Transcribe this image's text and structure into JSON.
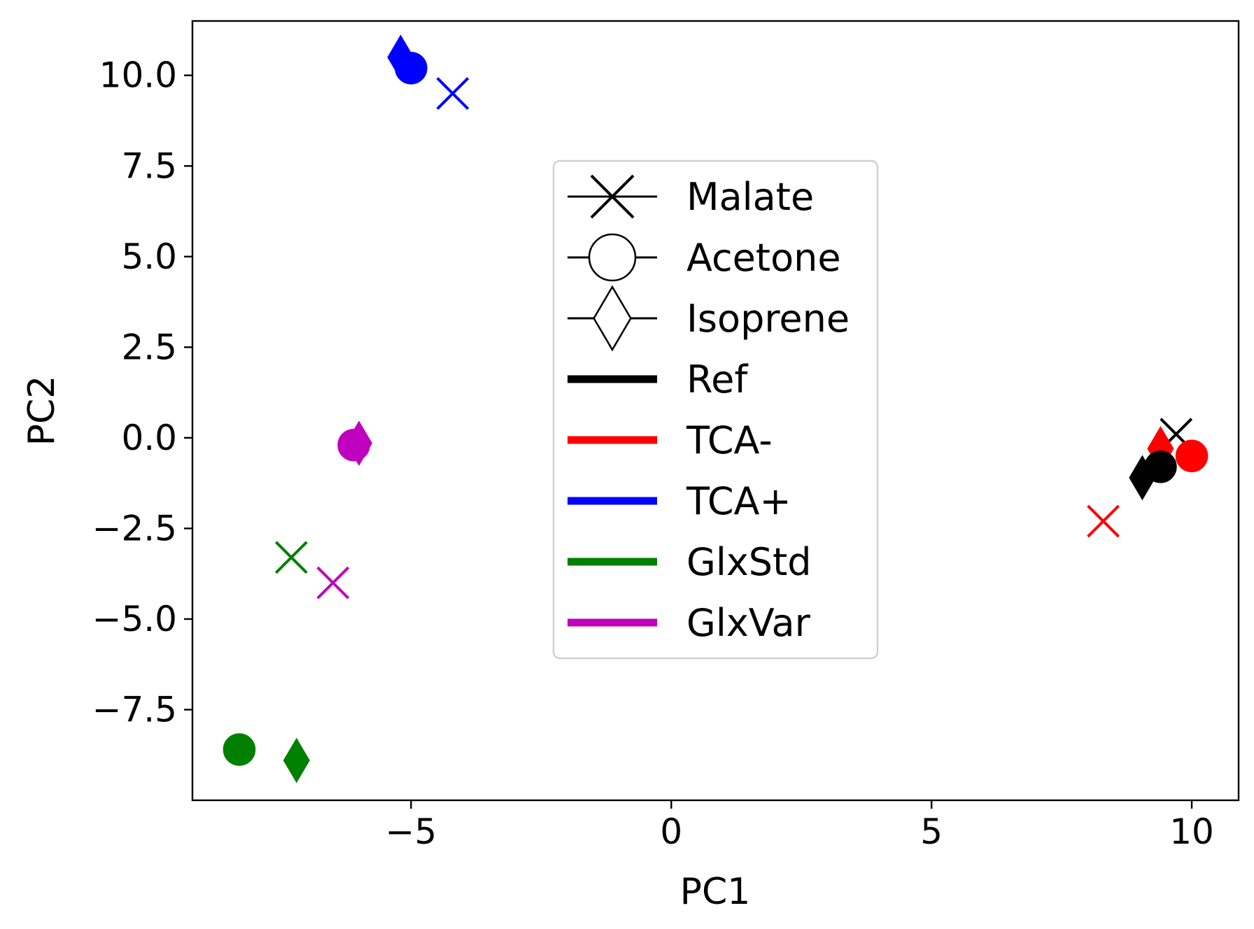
{
  "chart_data": {
    "type": "scatter",
    "title": "",
    "xlabel": "PC1",
    "ylabel": "PC2",
    "xlim": [
      -9.2,
      10.9
    ],
    "ylim": [
      -10.0,
      11.5
    ],
    "x_ticks": [
      {
        "value": -5,
        "label": "−5"
      },
      {
        "value": 0,
        "label": "0"
      },
      {
        "value": 5,
        "label": "5"
      },
      {
        "value": 10,
        "label": "10"
      }
    ],
    "y_ticks": [
      {
        "value": 10.0,
        "label": "10.0"
      },
      {
        "value": 7.5,
        "label": "7.5"
      },
      {
        "value": 5.0,
        "label": "5.0"
      },
      {
        "value": 2.5,
        "label": "2.5"
      },
      {
        "value": 0.0,
        "label": "0.0"
      },
      {
        "value": -2.5,
        "label": "−2.5"
      },
      {
        "value": -5.0,
        "label": "−5.0"
      },
      {
        "value": -7.5,
        "label": "−7.5"
      }
    ],
    "grid": false,
    "legend_position": "center",
    "marker_legend": [
      {
        "name": "Malate",
        "marker": "x"
      },
      {
        "name": "Acetone",
        "marker": "circle"
      },
      {
        "name": "Isoprene",
        "marker": "thin-diamond"
      }
    ],
    "color_legend": [
      {
        "name": "Ref",
        "color": "#000000"
      },
      {
        "name": "TCA-",
        "color": "#ff0000"
      },
      {
        "name": "TCA+",
        "color": "#0000ff"
      },
      {
        "name": "GlxStd",
        "color": "#008000"
      },
      {
        "name": "GlxVar",
        "color": "#bf00bf"
      }
    ],
    "points": [
      {
        "group": "TCA+",
        "compound": "Isoprene",
        "x": -5.2,
        "y": 10.5
      },
      {
        "group": "TCA+",
        "compound": "Acetone",
        "x": -5.0,
        "y": 10.2
      },
      {
        "group": "TCA+",
        "compound": "Malate",
        "x": -4.2,
        "y": 9.5
      },
      {
        "group": "GlxVar",
        "compound": "Acetone",
        "x": -6.1,
        "y": -0.2
      },
      {
        "group": "GlxVar",
        "compound": "Isoprene",
        "x": -6.0,
        "y": -0.15
      },
      {
        "group": "GlxStd",
        "compound": "Malate",
        "x": -7.3,
        "y": -3.3
      },
      {
        "group": "GlxVar",
        "compound": "Malate",
        "x": -6.5,
        "y": -4.0
      },
      {
        "group": "GlxStd",
        "compound": "Acetone",
        "x": -8.3,
        "y": -8.6
      },
      {
        "group": "GlxStd",
        "compound": "Isoprene",
        "x": -7.2,
        "y": -8.9
      },
      {
        "group": "Ref",
        "compound": "Malate",
        "x": 9.7,
        "y": 0.1
      },
      {
        "group": "TCA-",
        "compound": "Acetone",
        "x": 10.0,
        "y": -0.5
      },
      {
        "group": "TCA-",
        "compound": "Isoprene",
        "x": 9.4,
        "y": -0.3
      },
      {
        "group": "Ref",
        "compound": "Acetone",
        "x": 9.4,
        "y": -0.8
      },
      {
        "group": "Ref",
        "compound": "Isoprene",
        "x": 9.05,
        "y": -1.1
      },
      {
        "group": "TCA-",
        "compound": "Malate",
        "x": 8.3,
        "y": -2.3
      }
    ]
  }
}
